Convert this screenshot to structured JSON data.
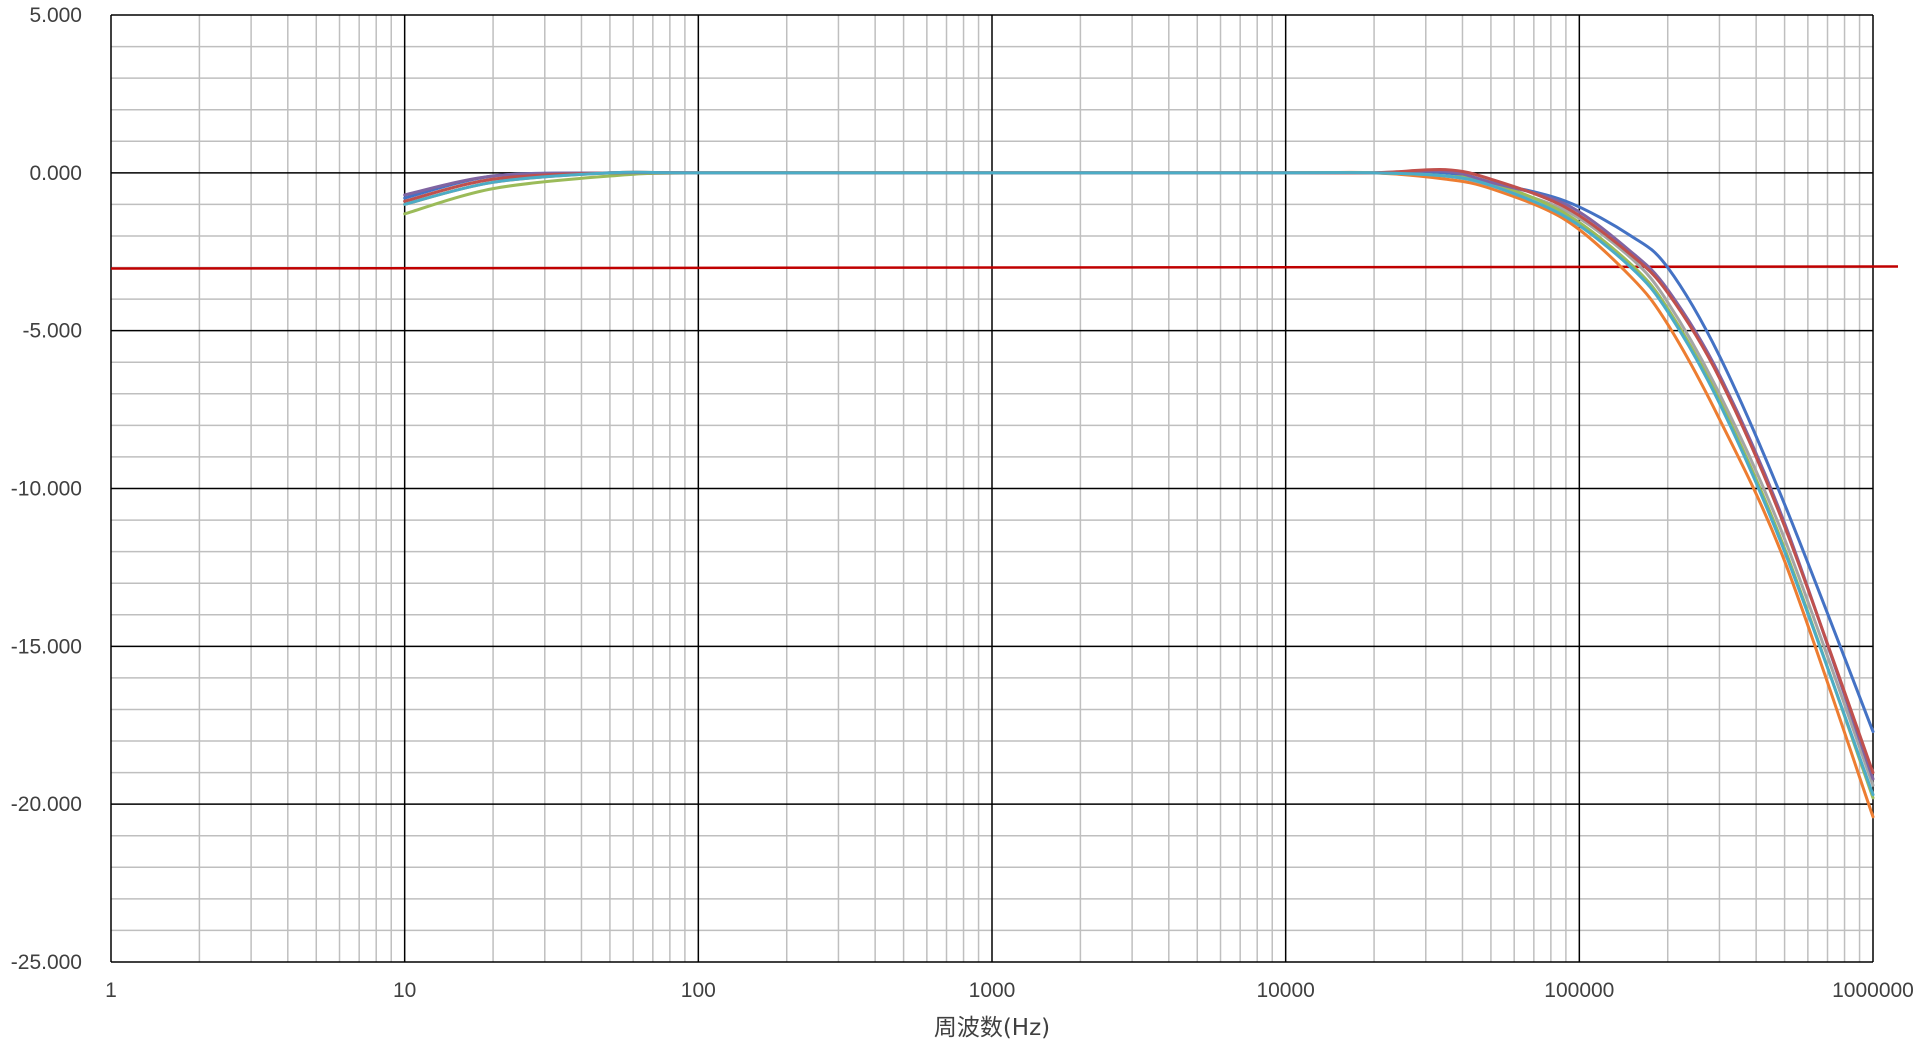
{
  "chart_data": {
    "type": "line",
    "title": "",
    "xlabel": "周波数(Hz)",
    "ylabel": "",
    "x_scale": "log",
    "xlim": [
      1,
      1000000
    ],
    "ylim": [
      -25,
      5
    ],
    "x_tick_labels": [
      "1",
      "10",
      "100",
      "1000",
      "10000",
      "100000",
      "1000000"
    ],
    "y_tick_labels": [
      "5.000",
      "0.000",
      "-5.000",
      "-10.000",
      "-15.000",
      "-20.000",
      "-25.000"
    ],
    "grid": "major and minor, both axes",
    "legend": "none",
    "reference_line": {
      "y": -3,
      "color": "#c00000"
    },
    "series": [
      {
        "color": "#4472c4",
        "x": [
          10,
          20,
          50,
          100,
          1000,
          10000,
          20000,
          35000,
          50000,
          90000,
          150000,
          200000,
          300000,
          500000,
          1000000
        ],
        "y": [
          -0.8,
          -0.1,
          0.0,
          0.0,
          0.0,
          0.0,
          0.0,
          0.0,
          -0.3,
          -0.9,
          -2.0,
          -3.0,
          -5.8,
          -10.5,
          -17.7
        ]
      },
      {
        "color": "#ed7d31",
        "x": [
          10,
          20,
          50,
          100,
          1000,
          10000,
          20000,
          35000,
          50000,
          90000,
          150000,
          200000,
          300000,
          500000,
          1000000
        ],
        "y": [
          -1.0,
          -0.3,
          0.0,
          0.0,
          0.0,
          0.0,
          0.0,
          -0.2,
          -0.5,
          -1.5,
          -3.3,
          -4.8,
          -7.8,
          -12.3,
          -20.4
        ]
      },
      {
        "color": "#a5a5a5",
        "x": [
          10,
          20,
          50,
          100,
          1000,
          10000,
          20000,
          35000,
          50000,
          90000,
          150000,
          200000,
          300000,
          500000,
          1000000
        ],
        "y": [
          -0.9,
          -0.2,
          0.0,
          0.0,
          0.0,
          0.0,
          0.0,
          -0.1,
          -0.4,
          -1.2,
          -2.7,
          -4.1,
          -7.0,
          -11.6,
          -19.4
        ]
      },
      {
        "color": "#9bbb59",
        "x": [
          10,
          20,
          50,
          100,
          1000,
          10000,
          20000,
          35000,
          50000,
          90000,
          150000,
          200000,
          300000,
          500000,
          1000000
        ],
        "y": [
          -1.3,
          -0.5,
          -0.1,
          0.0,
          0.0,
          0.0,
          0.0,
          -0.1,
          -0.3,
          -1.3,
          -2.9,
          -4.3,
          -7.2,
          -11.9,
          -19.8
        ]
      },
      {
        "color": "#8064a2",
        "x": [
          10,
          20,
          50,
          100,
          1000,
          10000,
          20000,
          35000,
          50000,
          90000,
          150000,
          200000,
          300000,
          500000,
          1000000
        ],
        "y": [
          -0.7,
          -0.1,
          0.0,
          0.0,
          0.0,
          0.0,
          0.0,
          0.05,
          -0.3,
          -1.0,
          -2.5,
          -3.7,
          -6.4,
          -11.1,
          -19.2
        ]
      },
      {
        "color": "#c0504d",
        "x": [
          10,
          20,
          50,
          100,
          1000,
          10000,
          20000,
          35000,
          50000,
          90000,
          150000,
          200000,
          300000,
          500000,
          1000000
        ],
        "y": [
          -0.9,
          -0.2,
          0.0,
          0.0,
          0.0,
          0.0,
          0.0,
          0.1,
          -0.2,
          -1.1,
          -2.6,
          -3.8,
          -6.5,
          -11.2,
          -19.0
        ]
      },
      {
        "color": "#4bacc6",
        "x": [
          10,
          20,
          50,
          100,
          1000,
          10000,
          20000,
          35000,
          50000,
          90000,
          150000,
          200000,
          300000,
          500000,
          1000000
        ],
        "y": [
          -1.0,
          -0.3,
          0.0,
          0.0,
          0.0,
          0.0,
          0.0,
          -0.1,
          -0.4,
          -1.4,
          -3.0,
          -4.4,
          -7.3,
          -12.0,
          -19.7
        ]
      }
    ]
  }
}
